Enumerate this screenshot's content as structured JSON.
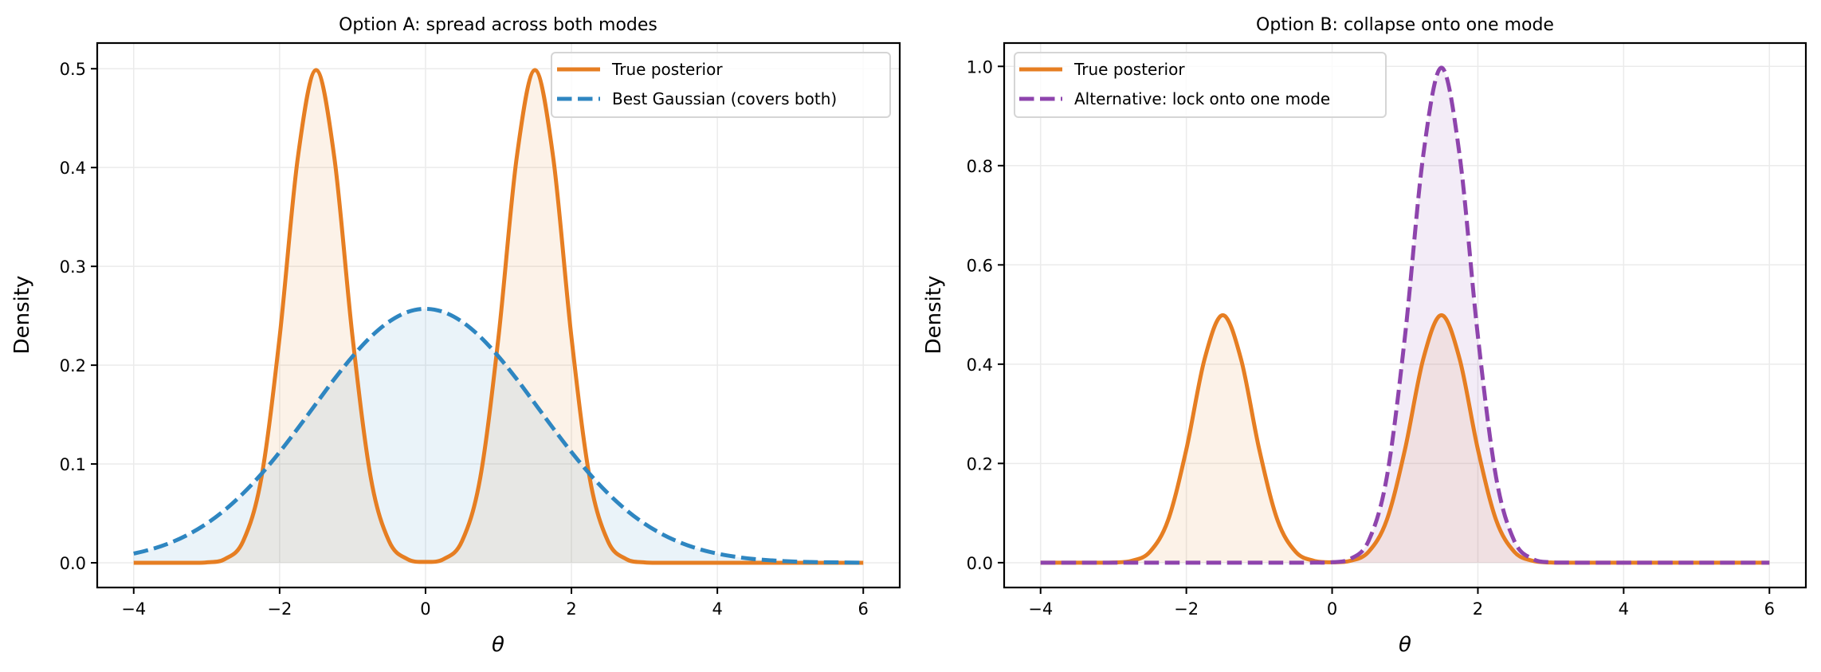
{
  "chart_data": [
    {
      "type": "line",
      "title": "Option A: spread across both modes",
      "xlabel": "θ",
      "ylabel": "Density",
      "xlim": [
        -4.5,
        6.5
      ],
      "ylim": [
        -0.025,
        0.526
      ],
      "xticks": [
        -4,
        -2,
        0,
        2,
        4,
        6
      ],
      "xtick_labels": [
        "−4",
        "−2",
        "0",
        "2",
        "4",
        "6"
      ],
      "yticks": [
        0.0,
        0.1,
        0.2,
        0.3,
        0.4,
        0.5
      ],
      "ytick_labels": [
        "0.0",
        "0.1",
        "0.2",
        "0.3",
        "0.4",
        "0.5"
      ],
      "grid": true,
      "legend_position": "top-right",
      "x": [
        -4.0,
        -3.75,
        -3.5,
        -3.25,
        -3.0,
        -2.75,
        -2.5,
        -2.25,
        -2.0,
        -1.75,
        -1.5,
        -1.25,
        -1.0,
        -0.75,
        -0.5,
        -0.25,
        0.0,
        0.25,
        0.5,
        0.75,
        1.0,
        1.25,
        1.5,
        1.75,
        2.0,
        2.25,
        2.5,
        2.75,
        3.0,
        3.25,
        3.5,
        3.75,
        4.0,
        4.25,
        4.5,
        4.75,
        5.0,
        5.25,
        5.5,
        5.75,
        6.0
      ],
      "series": [
        {
          "name": "True posterior",
          "style": "solid",
          "filled": true,
          "color": "#e67e22",
          "fill_color": "#e67e22",
          "values": [
            0.0,
            0.0,
            0.0,
            0.0,
            0.0004,
            0.0038,
            0.0219,
            0.086,
            0.2283,
            0.4102,
            0.4987,
            0.4102,
            0.2283,
            0.086,
            0.0219,
            0.0038,
            0.0009,
            0.0038,
            0.0219,
            0.086,
            0.2283,
            0.4102,
            0.4987,
            0.4102,
            0.2283,
            0.086,
            0.0219,
            0.0038,
            0.0004,
            0.0,
            0.0,
            0.0,
            0.0,
            0.0,
            0.0,
            0.0,
            0.0,
            0.0,
            0.0,
            0.0,
            0.0
          ]
        },
        {
          "name": "Best Gaussian (covers both)",
          "style": "dashed",
          "filled": true,
          "color": "#2e86c1",
          "fill_color": "#2e86c1",
          "values": [
            0.0093,
            0.0139,
            0.0202,
            0.0287,
            0.0397,
            0.0535,
            0.0703,
            0.0899,
            0.1121,
            0.1361,
            0.1611,
            0.1859,
            0.2088,
            0.2287,
            0.244,
            0.2537,
            0.257,
            0.2537,
            0.244,
            0.2287,
            0.2088,
            0.1859,
            0.1611,
            0.1361,
            0.1121,
            0.0899,
            0.0703,
            0.0535,
            0.0397,
            0.0287,
            0.0202,
            0.0139,
            0.0093,
            0.0061,
            0.0038,
            0.0024,
            0.0014,
            0.0008,
            0.0005,
            0.0003,
            0.0001
          ]
        }
      ]
    },
    {
      "type": "line",
      "title": "Option B: collapse onto one mode",
      "xlabel": "θ",
      "ylabel": "Density",
      "xlim": [
        -4.5,
        6.5
      ],
      "ylim": [
        -0.05,
        1.047
      ],
      "xticks": [
        -4,
        -2,
        0,
        2,
        4,
        6
      ],
      "xtick_labels": [
        "−4",
        "−2",
        "0",
        "2",
        "4",
        "6"
      ],
      "yticks": [
        0.0,
        0.2,
        0.4,
        0.6,
        0.8,
        1.0
      ],
      "ytick_labels": [
        "0.0",
        "0.2",
        "0.4",
        "0.6",
        "0.8",
        "1.0"
      ],
      "grid": true,
      "legend_position": "top-left",
      "x": [
        -4.0,
        -3.75,
        -3.5,
        -3.25,
        -3.0,
        -2.75,
        -2.5,
        -2.25,
        -2.0,
        -1.75,
        -1.5,
        -1.25,
        -1.0,
        -0.75,
        -0.5,
        -0.25,
        0.0,
        0.25,
        0.5,
        0.75,
        1.0,
        1.25,
        1.5,
        1.75,
        2.0,
        2.25,
        2.5,
        2.75,
        3.0,
        3.25,
        3.5,
        3.75,
        4.0,
        4.25,
        4.5,
        4.75,
        5.0,
        5.25,
        5.5,
        5.75,
        6.0
      ],
      "series": [
        {
          "name": "True posterior",
          "style": "solid",
          "filled": true,
          "color": "#e67e22",
          "fill_color": "#e67e22",
          "values": [
            0.0,
            0.0,
            0.0,
            0.0,
            0.0004,
            0.0038,
            0.0219,
            0.086,
            0.2283,
            0.4102,
            0.4987,
            0.4102,
            0.2283,
            0.086,
            0.0219,
            0.0038,
            0.0009,
            0.0038,
            0.0219,
            0.086,
            0.2283,
            0.4102,
            0.4987,
            0.4102,
            0.2283,
            0.086,
            0.0219,
            0.0038,
            0.0004,
            0.0,
            0.0,
            0.0,
            0.0,
            0.0,
            0.0,
            0.0,
            0.0,
            0.0,
            0.0,
            0.0,
            0.0
          ]
        },
        {
          "name": "Alternative: lock onto one mode",
          "style": "dashed",
          "filled": true,
          "color": "#8e44ad",
          "fill_color": "#8e44ad",
          "values": [
            0.0,
            0.0,
            0.0,
            0.0,
            0.0,
            0.0,
            0.0,
            0.0,
            0.0,
            0.0,
            0.0,
            0.0,
            0.0,
            0.0,
            0.0,
            0.0001,
            0.0009,
            0.0076,
            0.0438,
            0.172,
            0.4566,
            0.8204,
            0.9974,
            0.8204,
            0.4566,
            0.172,
            0.0438,
            0.0076,
            0.0009,
            0.0001,
            0.0,
            0.0,
            0.0,
            0.0,
            0.0,
            0.0,
            0.0,
            0.0,
            0.0,
            0.0,
            0.0
          ]
        }
      ]
    }
  ]
}
